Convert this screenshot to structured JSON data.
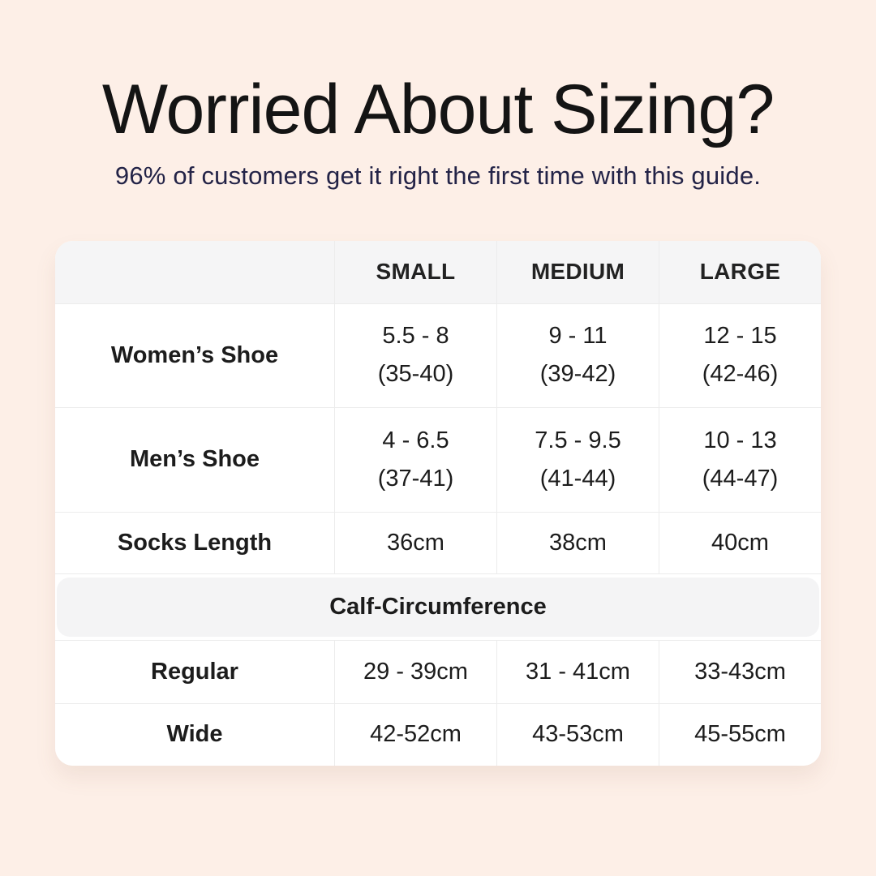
{
  "page": {
    "title": "Worried About Sizing?",
    "subtitle": "96% of customers get it right the first time with this guide."
  },
  "colors": {
    "background": "#FDEFE7",
    "card": "#FFFFFF",
    "header_fill": "#F5F5F6",
    "divider": "#ECECEC",
    "title_text": "#141414",
    "subtitle_text": "#232347",
    "table_text": "#1C1C1C"
  },
  "table": {
    "headers": [
      "SMALL",
      "MEDIUM",
      "LARGE"
    ],
    "rows": [
      {
        "label": "Women’s Shoe",
        "cells": [
          {
            "line1": "5.5 - 8",
            "line2": "(35-40)"
          },
          {
            "line1": "9 - 11",
            "line2": "(39-42)"
          },
          {
            "line1": "12 - 15",
            "line2": "(42-46)"
          }
        ]
      },
      {
        "label": "Men’s Shoe",
        "cells": [
          {
            "line1": "4 - 6.5",
            "line2": "(37-41)"
          },
          {
            "line1": "7.5 - 9.5",
            "line2": "(41-44)"
          },
          {
            "line1": "10 - 13",
            "line2": "(44-47)"
          }
        ]
      },
      {
        "label": "Socks Length",
        "cells": [
          {
            "line1": "36cm"
          },
          {
            "line1": "38cm"
          },
          {
            "line1": "40cm"
          }
        ]
      }
    ],
    "section_header": "Calf-Circumference",
    "calf_rows": [
      {
        "label": "Regular",
        "cells": [
          {
            "line1": "29 - 39cm"
          },
          {
            "line1": "31 - 41cm"
          },
          {
            "line1": "33-43cm"
          }
        ]
      },
      {
        "label": "Wide",
        "cells": [
          {
            "line1": "42-52cm"
          },
          {
            "line1": "43-53cm"
          },
          {
            "line1": "45-55cm"
          }
        ]
      }
    ]
  },
  "chart_data": {
    "type": "table",
    "title": "Worried About Sizing?",
    "subtitle": "96% of customers get it right the first time with this guide.",
    "columns": [
      "",
      "SMALL",
      "MEDIUM",
      "LARGE"
    ],
    "rows": [
      [
        "Women’s Shoe",
        "5.5 - 8 (35-40)",
        "9 - 11 (39-42)",
        "12 - 15 (42-46)"
      ],
      [
        "Men’s Shoe",
        "4 - 6.5 (37-41)",
        "7.5 - 9.5 (41-44)",
        "10 - 13 (44-47)"
      ],
      [
        "Socks Length",
        "36cm",
        "38cm",
        "40cm"
      ],
      [
        "Calf-Circumference",
        "",
        "",
        ""
      ],
      [
        "Regular",
        "29 - 39cm",
        "31 - 41cm",
        "33-43cm"
      ],
      [
        "Wide",
        "42-52cm",
        "43-53cm",
        "45-55cm"
      ]
    ],
    "notes": "Row 'Calf-Circumference' is a full-width section header band; shoe rows show US sizes with EU sizes in parentheses"
  }
}
